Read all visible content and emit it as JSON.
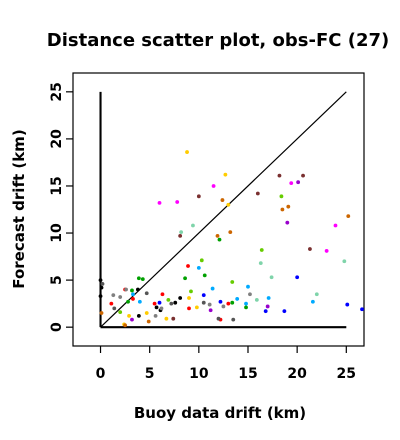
{
  "chart_data": {
    "type": "scatter",
    "title": "Distance scatter plot, obs-FC (27)",
    "xlabel": "Buoy data drift (km)",
    "ylabel": "Forecast drift (km)",
    "xlim": [
      -2.8,
      26.8
    ],
    "ylim": [
      -2,
      27
    ],
    "xticks": [
      0,
      5,
      10,
      15,
      20,
      25
    ],
    "yticks": [
      0,
      5,
      10,
      15,
      20,
      25
    ],
    "grid": false,
    "legend": "none",
    "reference_lines": [
      {
        "name": "identity",
        "x": [
          0,
          25
        ],
        "y": [
          0,
          25
        ],
        "color": "#000000"
      },
      {
        "name": "y-axis-marker",
        "x": [
          0,
          0
        ],
        "y": [
          0,
          25
        ],
        "color": "#000000"
      },
      {
        "name": "x-axis-marker",
        "x": [
          0,
          25
        ],
        "y": [
          0,
          0
        ],
        "color": "#000000"
      }
    ],
    "series": [
      {
        "color": "#000000",
        "points": [
          [
            0,
            5.0
          ],
          [
            0.1,
            4.2
          ],
          [
            0,
            3.3
          ],
          [
            3.8,
            4.0
          ],
          [
            5.7,
            2.1
          ],
          [
            6.1,
            1.8
          ],
          [
            7.6,
            2.6
          ],
          [
            8.1,
            3.1
          ],
          [
            3.9,
            1.2
          ]
        ]
      },
      {
        "color": "#ff0000",
        "points": [
          [
            1.1,
            2.5
          ],
          [
            2.5,
            4.0
          ],
          [
            3.3,
            3.0
          ],
          [
            5.5,
            2.5
          ],
          [
            6.3,
            3.5
          ],
          [
            9.0,
            2.0
          ],
          [
            12.2,
            0.8
          ],
          [
            13.0,
            2.5
          ],
          [
            8.9,
            6.5
          ]
        ]
      },
      {
        "color": "#00a000",
        "points": [
          [
            2.8,
            2.7
          ],
          [
            3.2,
            3.9
          ],
          [
            3.9,
            5.2
          ],
          [
            4.3,
            5.1
          ],
          [
            8.6,
            5.2
          ],
          [
            10.6,
            5.5
          ],
          [
            12.1,
            9.3
          ],
          [
            13.4,
            2.6
          ],
          [
            14.8,
            2.1
          ]
        ]
      },
      {
        "color": "#0000ff",
        "points": [
          [
            6.0,
            2.6
          ],
          [
            10.5,
            3.4
          ],
          [
            12.2,
            2.7
          ],
          [
            16.8,
            1.7
          ],
          [
            18.7,
            1.7
          ],
          [
            20.0,
            5.3
          ],
          [
            25.1,
            2.4
          ],
          [
            26.6,
            1.9
          ]
        ]
      },
      {
        "color": "#00aaff",
        "points": [
          [
            3.3,
            3.5
          ],
          [
            4.0,
            2.7
          ],
          [
            10.0,
            6.3
          ],
          [
            11.4,
            4.1
          ],
          [
            13.9,
            3.0
          ],
          [
            14.8,
            2.5
          ],
          [
            15.0,
            4.3
          ],
          [
            17.1,
            3.1
          ],
          [
            21.6,
            2.7
          ]
        ]
      },
      {
        "color": "#ff00ff",
        "points": [
          [
            6.0,
            13.2
          ],
          [
            7.8,
            13.3
          ],
          [
            11.5,
            15.0
          ],
          [
            19.4,
            15.3
          ],
          [
            23.0,
            8.1
          ],
          [
            23.9,
            10.8
          ]
        ]
      },
      {
        "color": "#ffcc00",
        "points": [
          [
            2.4,
            0.3
          ],
          [
            2.9,
            1.2
          ],
          [
            4.7,
            1.5
          ],
          [
            6.7,
            0.9
          ],
          [
            8.8,
            18.6
          ],
          [
            12.7,
            16.2
          ],
          [
            13.0,
            13.0
          ],
          [
            9.0,
            3.1
          ],
          [
            9.8,
            2.1
          ]
        ]
      },
      {
        "color": "#cc6600",
        "points": [
          [
            0.1,
            1.5
          ],
          [
            2.5,
            0.2
          ],
          [
            4.9,
            0.6
          ],
          [
            12.4,
            13.5
          ],
          [
            18.5,
            12.5
          ],
          [
            19.1,
            12.8
          ],
          [
            13.2,
            10.1
          ],
          [
            11.9,
            9.7
          ],
          [
            25.2,
            11.8
          ]
        ]
      },
      {
        "color": "#7a3030",
        "points": [
          [
            8.1,
            9.7
          ],
          [
            10.0,
            13.9
          ],
          [
            16.0,
            14.2
          ],
          [
            18.2,
            16.1
          ],
          [
            20.6,
            16.1
          ],
          [
            21.3,
            8.3
          ],
          [
            7.4,
            0.9
          ]
        ]
      },
      {
        "color": "#7fd4aa",
        "points": [
          [
            8.2,
            10.1
          ],
          [
            9.4,
            10.8
          ],
          [
            15.9,
            2.9
          ],
          [
            16.3,
            6.8
          ],
          [
            24.8,
            7.0
          ],
          [
            17.4,
            5.3
          ],
          [
            22.0,
            3.5
          ]
        ]
      },
      {
        "color": "#808080",
        "points": [
          [
            1.3,
            3.4
          ],
          [
            2.0,
            3.2
          ],
          [
            2.6,
            4.0
          ],
          [
            5.6,
            1.2
          ],
          [
            6.2,
            2.0
          ],
          [
            11.1,
            2.4
          ],
          [
            12.5,
            2.2
          ],
          [
            15.2,
            3.5
          ]
        ]
      },
      {
        "color": "#555555",
        "points": [
          [
            0.2,
            4.6
          ],
          [
            1.4,
            2.0
          ],
          [
            4.7,
            3.6
          ],
          [
            7.2,
            2.5
          ],
          [
            10.5,
            2.6
          ],
          [
            12.0,
            0.9
          ],
          [
            13.5,
            0.8
          ]
        ]
      },
      {
        "color": "#66cc00",
        "points": [
          [
            2.0,
            1.6
          ],
          [
            6.9,
            2.9
          ],
          [
            9.2,
            3.8
          ],
          [
            10.3,
            7.1
          ],
          [
            13.4,
            4.8
          ],
          [
            16.4,
            8.2
          ],
          [
            18.4,
            13.9
          ]
        ]
      },
      {
        "color": "#9900cc",
        "points": [
          [
            3.2,
            0.8
          ],
          [
            11.2,
            1.8
          ],
          [
            17.0,
            2.2
          ],
          [
            19.0,
            11.1
          ],
          [
            20.1,
            15.4
          ]
        ]
      }
    ]
  }
}
